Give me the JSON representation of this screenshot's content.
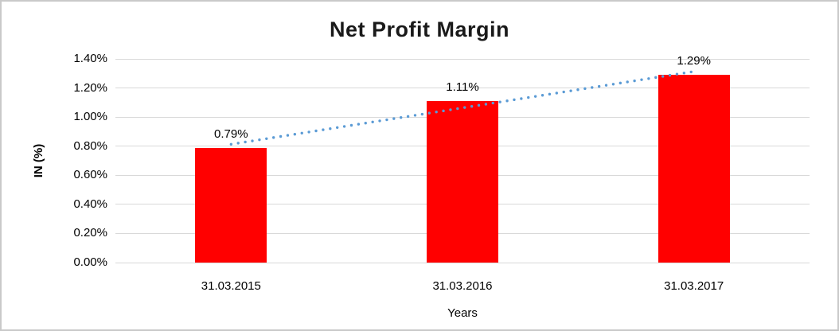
{
  "chart_data": {
    "type": "bar",
    "title": "Net Profit Margin",
    "categories": [
      "31.03.2015",
      "31.03.2016",
      "31.03.2017"
    ],
    "values": [
      0.79,
      1.11,
      1.29
    ],
    "data_labels": [
      "0.79%",
      "1.11%",
      "1.29%"
    ],
    "xlabel": "Years",
    "ylabel": "IN (%)",
    "ylim": [
      0,
      1.4
    ],
    "yticks": {
      "values": [
        0,
        0.2,
        0.4,
        0.6,
        0.8,
        1.0,
        1.2,
        1.4
      ],
      "labels": [
        "0.00%",
        "0.20%",
        "0.40%",
        "0.60%",
        "0.80%",
        "1.00%",
        "1.20%",
        "1.40%"
      ]
    },
    "grid": true,
    "legend": false,
    "trendline": {
      "type": "linear",
      "style": "dotted"
    },
    "colors": {
      "bar": "#ff0000",
      "trendline": "#5b9bd5",
      "gridline": "#d9d9d9",
      "axis_text": "#000000",
      "title_text": "#1a1a1a",
      "frame_border": "#c9c9c9"
    }
  }
}
